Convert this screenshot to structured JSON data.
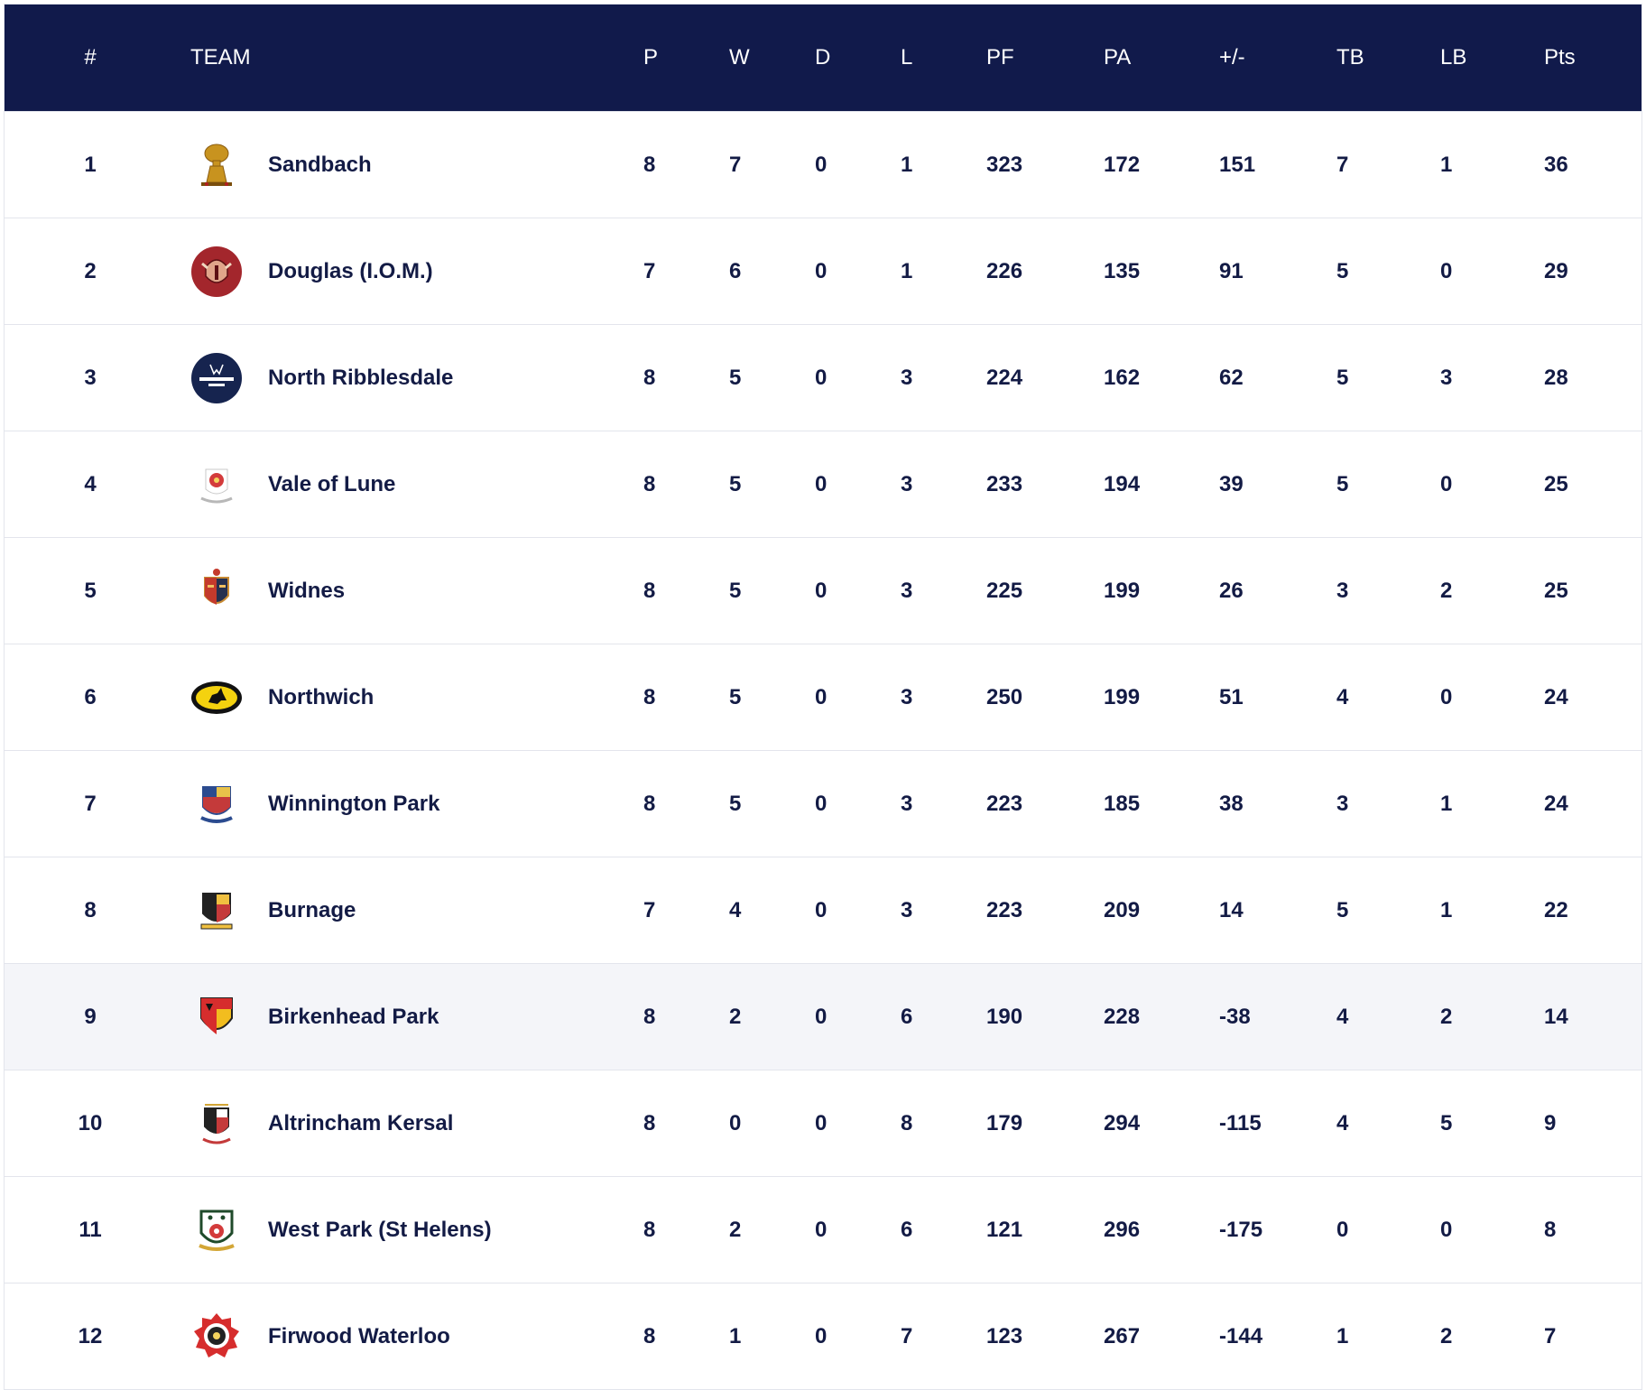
{
  "header": {
    "pos": "#",
    "team": "TEAM",
    "p": "P",
    "w": "W",
    "d": "D",
    "l": "L",
    "pf": "PF",
    "pa": "PA",
    "diff": "+/-",
    "tb": "TB",
    "lb": "LB",
    "pts": "Pts"
  },
  "colors": {
    "header_bg": "#111a4b",
    "text": "#131b45",
    "highlight_row": "#f4f5f9"
  },
  "rows": [
    {
      "pos": "1",
      "team": "Sandbach",
      "logo": "sandbach-wheatsheaf-icon",
      "p": "8",
      "w": "7",
      "d": "0",
      "l": "1",
      "pf": "323",
      "pa": "172",
      "diff": "151",
      "tb": "7",
      "lb": "1",
      "pts": "36"
    },
    {
      "pos": "2",
      "team": "Douglas (I.O.M.)",
      "logo": "douglas-viking-icon",
      "p": "7",
      "w": "6",
      "d": "0",
      "l": "1",
      "pf": "226",
      "pa": "135",
      "diff": "91",
      "tb": "5",
      "lb": "0",
      "pts": "29"
    },
    {
      "pos": "3",
      "team": "North Ribblesdale",
      "logo": "north-ribblesdale-stag-icon",
      "p": "8",
      "w": "5",
      "d": "0",
      "l": "3",
      "pf": "224",
      "pa": "162",
      "diff": "62",
      "tb": "5",
      "lb": "3",
      "pts": "28"
    },
    {
      "pos": "4",
      "team": "Vale of Lune",
      "logo": "vale-of-lune-rose-icon",
      "p": "8",
      "w": "5",
      "d": "0",
      "l": "3",
      "pf": "233",
      "pa": "194",
      "diff": "39",
      "tb": "5",
      "lb": "0",
      "pts": "25"
    },
    {
      "pos": "5",
      "team": "Widnes",
      "logo": "widnes-shield-icon",
      "p": "8",
      "w": "5",
      "d": "0",
      "l": "3",
      "pf": "225",
      "pa": "199",
      "diff": "26",
      "tb": "3",
      "lb": "2",
      "pts": "25"
    },
    {
      "pos": "6",
      "team": "Northwich",
      "logo": "northwich-oval-icon",
      "p": "8",
      "w": "5",
      "d": "0",
      "l": "3",
      "pf": "250",
      "pa": "199",
      "diff": "51",
      "tb": "4",
      "lb": "0",
      "pts": "24"
    },
    {
      "pos": "7",
      "team": "Winnington Park",
      "logo": "winnington-park-crest-icon",
      "p": "8",
      "w": "5",
      "d": "0",
      "l": "3",
      "pf": "223",
      "pa": "185",
      "diff": "38",
      "tb": "3",
      "lb": "1",
      "pts": "24"
    },
    {
      "pos": "8",
      "team": "Burnage",
      "logo": "burnage-shield-icon",
      "p": "7",
      "w": "4",
      "d": "0",
      "l": "3",
      "pf": "223",
      "pa": "209",
      "diff": "14",
      "tb": "5",
      "lb": "1",
      "pts": "22"
    },
    {
      "pos": "9",
      "team": "Birkenhead Park",
      "logo": "birkenhead-park-shield-icon",
      "p": "8",
      "w": "2",
      "d": "0",
      "l": "6",
      "pf": "190",
      "pa": "228",
      "diff": "-38",
      "tb": "4",
      "lb": "2",
      "pts": "14",
      "highlight": true
    },
    {
      "pos": "10",
      "team": "Altrincham Kersal",
      "logo": "altrincham-kersal-crest-icon",
      "p": "8",
      "w": "0",
      "d": "0",
      "l": "8",
      "pf": "179",
      "pa": "294",
      "diff": "-115",
      "tb": "4",
      "lb": "5",
      "pts": "9"
    },
    {
      "pos": "11",
      "team": "West Park (St Helens)",
      "logo": "west-park-shield-icon",
      "p": "8",
      "w": "2",
      "d": "0",
      "l": "6",
      "pf": "121",
      "pa": "296",
      "diff": "-175",
      "tb": "0",
      "lb": "0",
      "pts": "8"
    },
    {
      "pos": "12",
      "team": "Firwood Waterloo",
      "logo": "firwood-waterloo-rose-icon",
      "p": "8",
      "w": "1",
      "d": "0",
      "l": "7",
      "pf": "123",
      "pa": "267",
      "diff": "-144",
      "tb": "1",
      "lb": "2",
      "pts": "7"
    }
  ]
}
